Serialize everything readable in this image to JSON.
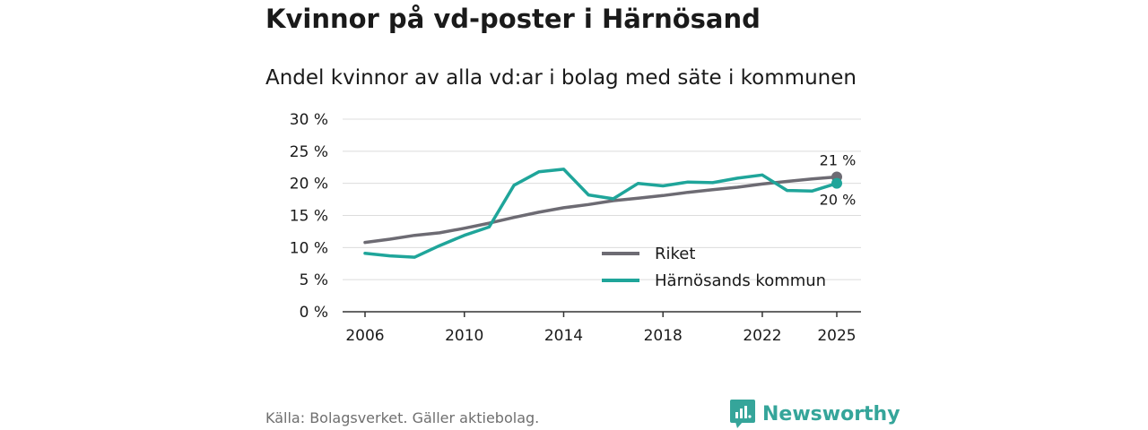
{
  "title": "Kvinnor på vd-poster i Härnösand",
  "subtitle": "Andel kvinnor av alla vd:ar i bolag med säte i kommunen",
  "source": "Källa: Bolagsverket. Gäller aktiebolag.",
  "brand": "Newsworthy",
  "colors": {
    "riket": "#6d6b73",
    "kommun": "#1fa59a",
    "brand": "#35a59a"
  },
  "chart_data": {
    "type": "line",
    "x": [
      2006,
      2007,
      2008,
      2009,
      2010,
      2011,
      2012,
      2013,
      2014,
      2015,
      2016,
      2017,
      2018,
      2019,
      2020,
      2021,
      2022,
      2023,
      2024,
      2025
    ],
    "series": [
      {
        "name": "Riket",
        "color": "#6d6b73",
        "values": [
          10.8,
          11.3,
          11.9,
          12.3,
          13.0,
          13.8,
          14.7,
          15.5,
          16.2,
          16.7,
          17.3,
          17.7,
          18.1,
          18.6,
          19.0,
          19.4,
          19.9,
          20.3,
          20.7,
          21.0
        ]
      },
      {
        "name": "Härnösands kommun",
        "color": "#1fa59a",
        "values": [
          9.1,
          8.7,
          8.5,
          10.3,
          11.9,
          13.2,
          19.7,
          21.8,
          22.2,
          18.2,
          17.6,
          20.0,
          19.6,
          20.2,
          20.1,
          20.8,
          21.3,
          18.9,
          18.8,
          20.0
        ]
      }
    ],
    "xticks": [
      "2006",
      "2010",
      "2014",
      "2018",
      "2022",
      "2025"
    ],
    "yticks": [
      "0 %",
      "5 %",
      "10 %",
      "15 %",
      "20 %",
      "25 %",
      "30 %"
    ],
    "ylim": [
      0,
      30
    ],
    "end_labels": {
      "riket": "21 %",
      "kommun": "20 %"
    },
    "legend": [
      "Riket",
      "Härnösands kommun"
    ],
    "legend_position": "bottom-right",
    "xlabel": "",
    "ylabel": ""
  }
}
